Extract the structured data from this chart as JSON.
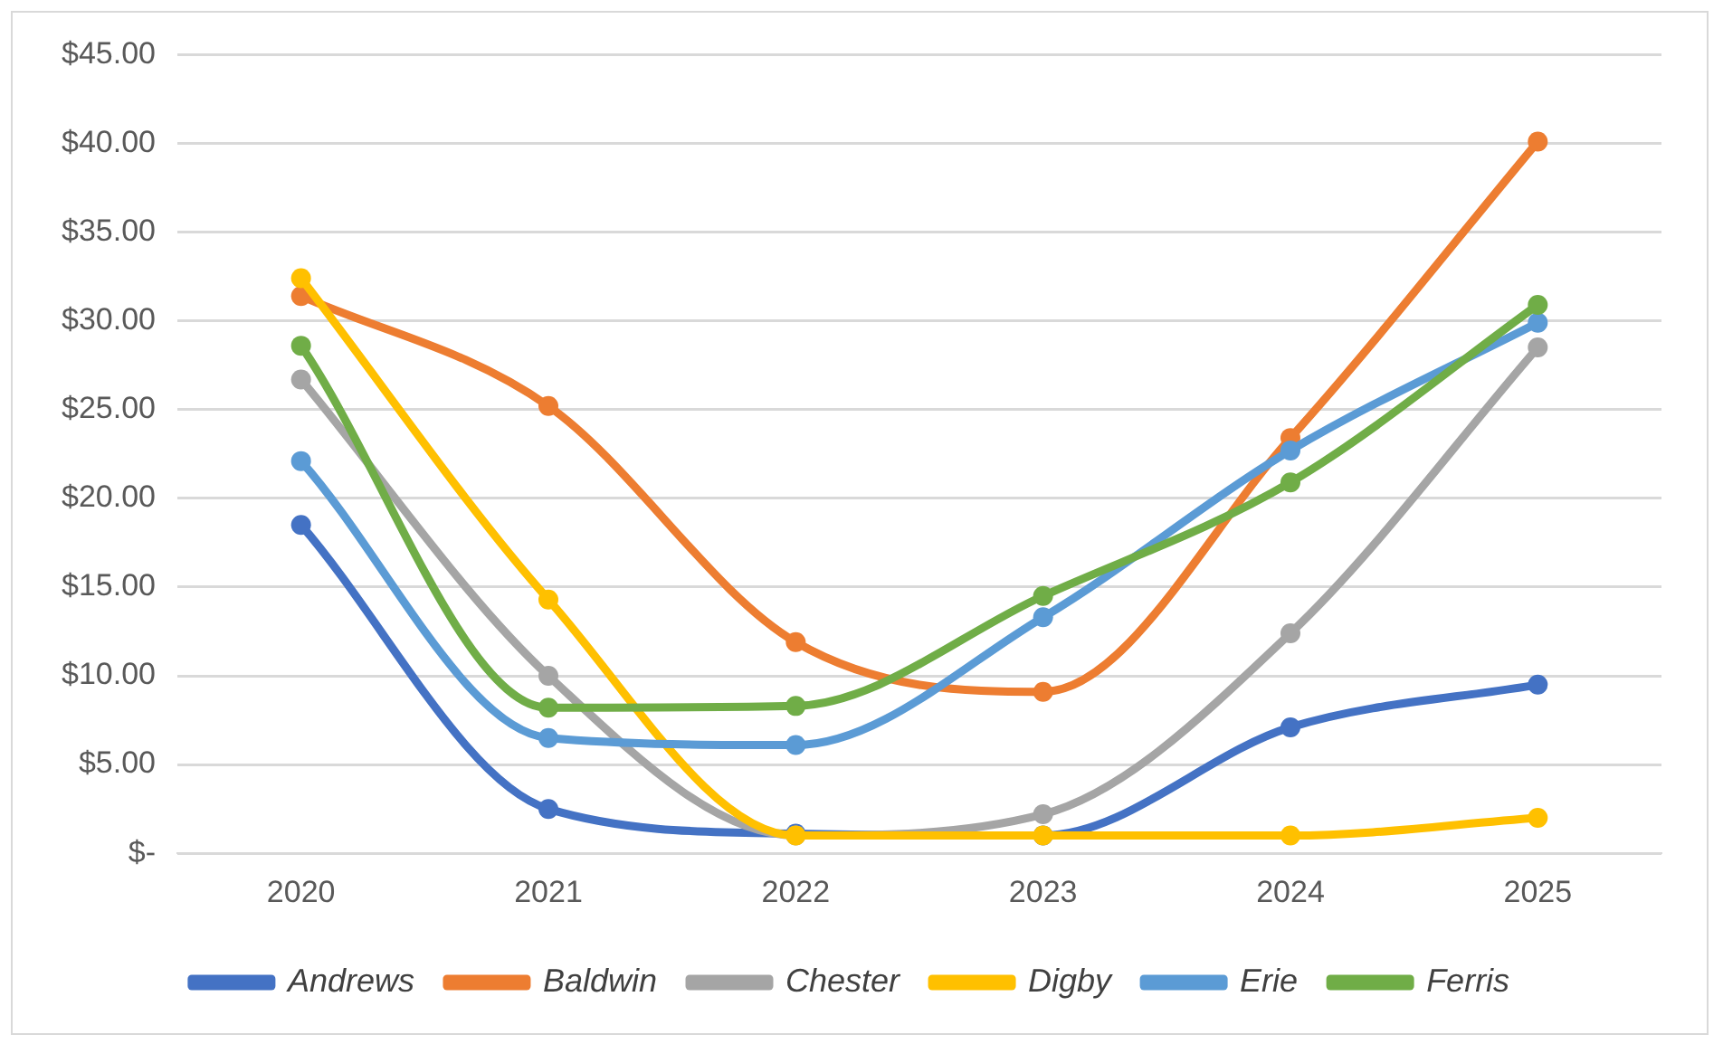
{
  "chart_data": {
    "type": "line",
    "categories": [
      "2020",
      "2021",
      "2022",
      "2023",
      "2024",
      "2025"
    ],
    "series": [
      {
        "name": "Andrews",
        "color": "#4472c4",
        "values": [
          18.5,
          2.5,
          1.1,
          1.0,
          7.1,
          9.5
        ]
      },
      {
        "name": "Baldwin",
        "color": "#ed7d31",
        "values": [
          31.4,
          25.2,
          11.9,
          9.1,
          23.4,
          40.1
        ]
      },
      {
        "name": "Chester",
        "color": "#a5a5a5",
        "values": [
          26.7,
          10.0,
          1.0,
          2.2,
          12.4,
          28.5
        ]
      },
      {
        "name": "Digby",
        "color": "#ffc000",
        "values": [
          32.4,
          14.3,
          1.0,
          1.0,
          1.0,
          2.0
        ]
      },
      {
        "name": "Erie",
        "color": "#5b9bd5",
        "values": [
          22.1,
          6.5,
          6.1,
          13.3,
          22.7,
          29.9
        ]
      },
      {
        "name": "Ferris",
        "color": "#70ad47",
        "values": [
          28.6,
          8.2,
          8.3,
          14.5,
          20.9,
          30.9
        ]
      }
    ],
    "ylim": [
      0,
      45
    ],
    "yticks": [
      {
        "value": 0,
        "label": "$-"
      },
      {
        "value": 5,
        "label": "$5.00"
      },
      {
        "value": 10,
        "label": "$10.00"
      },
      {
        "value": 15,
        "label": "$15.00"
      },
      {
        "value": 20,
        "label": "$20.00"
      },
      {
        "value": 25,
        "label": "$25.00"
      },
      {
        "value": 30,
        "label": "$30.00"
      },
      {
        "value": 35,
        "label": "$35.00"
      },
      {
        "value": 40,
        "label": "$40.00"
      },
      {
        "value": 45,
        "label": "$45.00"
      }
    ],
    "grid": "y",
    "legend": "bottom",
    "marker": "circle",
    "line_style": "solid"
  }
}
